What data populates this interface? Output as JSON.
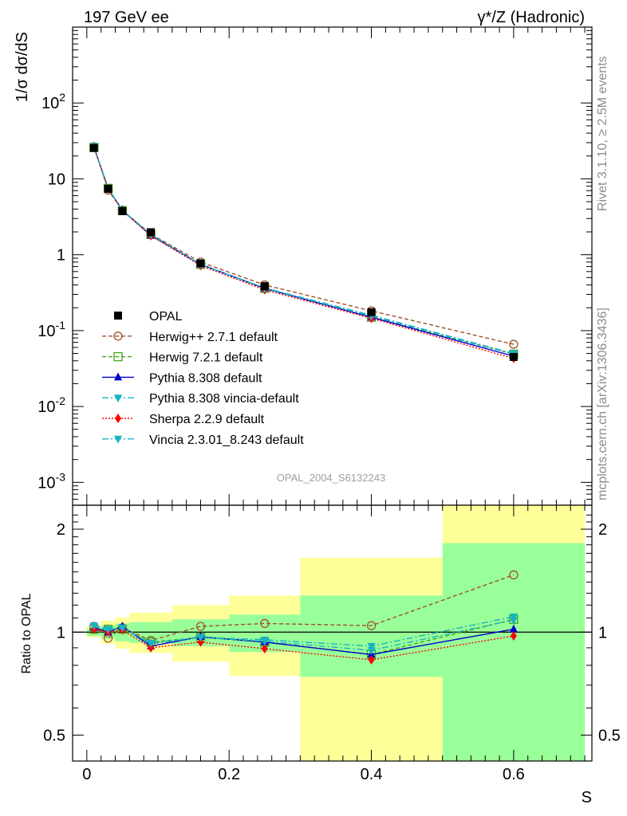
{
  "header": {
    "left": "197 GeV ee",
    "right": "γ*/Z (Hadronic)"
  },
  "side_text": {
    "rivet": "Rivet 3.1.10, ≥ 2.5M events",
    "mcplots": "mcplots.cern.ch [arXiv:1306.3436]"
  },
  "watermark": "OPAL_2004_S6132243",
  "colors": {
    "band_yellow": "#ffff99",
    "band_green": "#99ff99",
    "herwigpp": "#a0522d",
    "herwig7": "#44a51c",
    "pythia": "#0000cc",
    "vincia": "#1ab2c4",
    "sherpa": "#ff0000"
  },
  "chart_data": [
    {
      "type": "line",
      "panel": "main",
      "ylabel": "1/σ dσ/dS",
      "y_scale": "log",
      "ylim": [
        0.0005,
        1000
      ],
      "xlim": [
        -0.02,
        0.71
      ],
      "y_ticks": [
        "10^-3",
        "10^-2",
        "10^-1",
        "1",
        "10",
        "10^2"
      ],
      "legend_position": "center-left",
      "series": [
        {
          "name": "OPAL",
          "style": "data",
          "x": [
            0.01,
            0.03,
            0.05,
            0.09,
            0.16,
            0.25,
            0.4,
            0.6
          ],
          "y": [
            25.5,
            7.4,
            3.75,
            1.98,
            0.77,
            0.385,
            0.175,
            0.045
          ]
        },
        {
          "name": "Herwig++ 2.7.1 default",
          "style": "herwigpp",
          "x": [
            0.01,
            0.03,
            0.05,
            0.09,
            0.16,
            0.25,
            0.4,
            0.6
          ],
          "y": [
            26.5,
            7.1,
            3.85,
            1.87,
            0.8,
            0.4,
            0.182,
            0.066
          ]
        },
        {
          "name": "Herwig 7.2.1 default",
          "style": "herwig7",
          "x": [
            0.01,
            0.03,
            0.05,
            0.09,
            0.16,
            0.25,
            0.4,
            0.6
          ],
          "y": [
            26.0,
            7.5,
            3.82,
            1.85,
            0.745,
            0.36,
            0.15,
            0.049
          ]
        },
        {
          "name": "Pythia 8.308 default",
          "style": "pythia",
          "x": [
            0.01,
            0.03,
            0.05,
            0.09,
            0.16,
            0.25,
            0.4,
            0.6
          ],
          "y": [
            26.3,
            7.4,
            3.88,
            1.8,
            0.748,
            0.36,
            0.15,
            0.046
          ]
        },
        {
          "name": "Pythia 8.308 vincia-default",
          "style": "vincia",
          "x": [
            0.01,
            0.03,
            0.05,
            0.09,
            0.16,
            0.25,
            0.4,
            0.6
          ],
          "y": [
            26.5,
            7.45,
            3.85,
            1.83,
            0.745,
            0.365,
            0.16,
            0.05
          ]
        },
        {
          "name": "Sherpa 2.2.9 default",
          "style": "sherpa",
          "x": [
            0.01,
            0.03,
            0.05,
            0.09,
            0.16,
            0.25,
            0.4,
            0.6
          ],
          "y": [
            26.0,
            7.4,
            3.8,
            1.78,
            0.72,
            0.345,
            0.145,
            0.043
          ]
        },
        {
          "name": "Vincia 2.3.01_8.243 default",
          "style": "vincia",
          "x": [
            0.01,
            0.03,
            0.05,
            0.09,
            0.16,
            0.25,
            0.4,
            0.6
          ],
          "y": [
            26.8,
            7.5,
            3.85,
            1.85,
            0.745,
            0.36,
            0.155,
            0.049
          ]
        }
      ]
    },
    {
      "type": "line",
      "panel": "ratio",
      "xlabel": "S",
      "ylabel": "Ratio to OPAL",
      "y_scale": "log",
      "ylim": [
        0.42,
        2.35
      ],
      "xlim": [
        -0.02,
        0.71
      ],
      "x_ticks": [
        "0",
        "0.2",
        "0.4",
        "0.6"
      ],
      "y_ticks": [
        "0.5",
        "1",
        "2"
      ],
      "bands": [
        {
          "xlo": 0.0,
          "xhi": 0.02,
          "yellow": [
            0.965,
            1.035
          ],
          "green": [
            0.975,
            1.025
          ]
        },
        {
          "xlo": 0.02,
          "xhi": 0.04,
          "yellow": [
            0.925,
            1.08
          ],
          "green": [
            0.955,
            1.045
          ]
        },
        {
          "xlo": 0.04,
          "xhi": 0.06,
          "yellow": [
            0.895,
            1.105
          ],
          "green": [
            0.94,
            1.06
          ]
        },
        {
          "xlo": 0.06,
          "xhi": 0.12,
          "yellow": [
            0.87,
            1.14
          ],
          "green": [
            0.93,
            1.07
          ]
        },
        {
          "xlo": 0.12,
          "xhi": 0.2,
          "yellow": [
            0.82,
            1.2
          ],
          "green": [
            0.91,
            1.09
          ]
        },
        {
          "xlo": 0.2,
          "xhi": 0.3,
          "yellow": [
            0.745,
            1.28
          ],
          "green": [
            0.875,
            1.125
          ]
        },
        {
          "xlo": 0.3,
          "xhi": 0.5,
          "yellow": [
            0.35,
            1.65
          ],
          "green": [
            0.74,
            1.28
          ]
        },
        {
          "xlo": 0.5,
          "xhi": 0.7,
          "yellow": [
            0.35,
            2.5
          ],
          "green": [
            0.35,
            1.82
          ]
        }
      ],
      "series": [
        {
          "name": "Herwig++ 2.7.1 default",
          "style": "herwigpp",
          "x": [
            0.01,
            0.03,
            0.05,
            0.09,
            0.16,
            0.25,
            0.4,
            0.6
          ],
          "y": [
            1.04,
            0.96,
            1.03,
            0.945,
            1.04,
            1.06,
            1.045,
            1.47
          ]
        },
        {
          "name": "Herwig 7.2.1 default",
          "style": "herwig7",
          "x": [
            0.01,
            0.03,
            0.05,
            0.09,
            0.16,
            0.25,
            0.4,
            0.6
          ],
          "y": [
            1.02,
            1.02,
            1.02,
            0.935,
            0.965,
            0.935,
            0.86,
            1.09
          ]
        },
        {
          "name": "Pythia 8.308 default",
          "style": "pythia",
          "x": [
            0.01,
            0.03,
            0.05,
            0.09,
            0.16,
            0.25,
            0.4,
            0.6
          ],
          "y": [
            1.03,
            1.0,
            1.04,
            0.91,
            0.97,
            0.935,
            0.86,
            1.02
          ]
        },
        {
          "name": "Pythia 8.308 vincia-default",
          "style": "vincia",
          "x": [
            0.01,
            0.03,
            0.05,
            0.09,
            0.16,
            0.25,
            0.4,
            0.6
          ],
          "y": [
            1.04,
            1.01,
            1.03,
            0.925,
            0.965,
            0.95,
            0.91,
            1.11
          ]
        },
        {
          "name": "Sherpa 2.2.9 default",
          "style": "sherpa",
          "x": [
            0.01,
            0.03,
            0.05,
            0.09,
            0.16,
            0.25,
            0.4,
            0.6
          ],
          "y": [
            1.02,
            1.0,
            1.015,
            0.9,
            0.935,
            0.895,
            0.83,
            0.975
          ]
        },
        {
          "name": "Vincia 2.3.01_8.243 default",
          "style": "vincia",
          "x": [
            0.01,
            0.03,
            0.05,
            0.09,
            0.16,
            0.25,
            0.4,
            0.6
          ],
          "y": [
            1.045,
            1.02,
            1.03,
            0.93,
            0.965,
            0.94,
            0.885,
            1.085
          ]
        }
      ]
    }
  ]
}
